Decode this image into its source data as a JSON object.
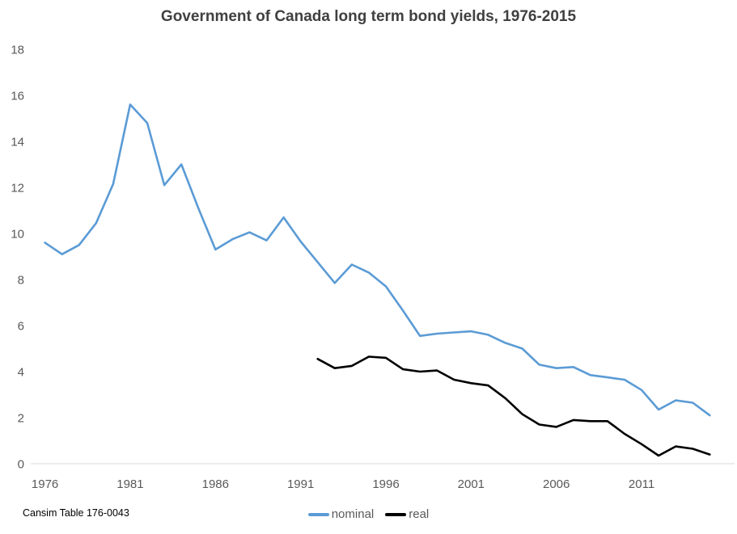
{
  "chart_data": {
    "type": "line",
    "title": "Government of Canada long term bond yields, 1976-2015",
    "x": [
      1976,
      1977,
      1978,
      1979,
      1980,
      1981,
      1982,
      1983,
      1984,
      1985,
      1986,
      1987,
      1988,
      1989,
      1990,
      1991,
      1992,
      1993,
      1994,
      1995,
      1996,
      1997,
      1998,
      1999,
      2000,
      2001,
      2002,
      2003,
      2004,
      2005,
      2006,
      2007,
      2008,
      2009,
      2010,
      2011,
      2012,
      2013,
      2014,
      2015
    ],
    "series": [
      {
        "name": "nominal",
        "color": "#5B9BD5",
        "values": [
          9.6,
          9.1,
          9.5,
          10.45,
          12.15,
          15.6,
          14.8,
          12.1,
          13.0,
          11.1,
          9.3,
          9.75,
          10.05,
          9.7,
          10.7,
          9.65,
          8.75,
          7.85,
          8.65,
          8.3,
          7.7,
          6.65,
          5.55,
          5.65,
          5.7,
          5.75,
          5.6,
          5.25,
          5.0,
          4.3,
          4.15,
          4.2,
          3.85,
          3.75,
          3.65,
          3.2,
          2.35,
          2.75,
          2.65,
          2.1
        ]
      },
      {
        "name": "real",
        "color": "#000000",
        "values": [
          null,
          null,
          null,
          null,
          null,
          null,
          null,
          null,
          null,
          null,
          null,
          null,
          null,
          null,
          null,
          null,
          4.55,
          4.15,
          4.25,
          4.65,
          4.6,
          4.1,
          4.0,
          4.05,
          3.65,
          3.5,
          3.4,
          2.85,
          2.15,
          1.7,
          1.6,
          1.9,
          1.85,
          1.85,
          1.3,
          0.85,
          0.35,
          0.75,
          0.65,
          0.4
        ]
      }
    ],
    "x_axis": {
      "tick_years": [
        1976,
        1981,
        1986,
        1991,
        1996,
        2001,
        2006,
        2011
      ],
      "tick_labels": [
        "1976",
        "1981",
        "1986",
        "1991",
        "1996",
        "2001",
        "2006",
        "2011"
      ]
    },
    "y_axis": {
      "min": 0,
      "max": 18,
      "step": 2,
      "tick_labels": [
        "0",
        "2",
        "4",
        "6",
        "8",
        "10",
        "12",
        "14",
        "16",
        "18"
      ]
    },
    "legend": {
      "position": "bottom",
      "entries": [
        "nominal",
        "real"
      ]
    },
    "grid": "off",
    "ylim": [
      0,
      18
    ]
  },
  "source_note": "Cansim Table 176-0043",
  "colors": {
    "nominal": "#5B9BD5",
    "real": "#000000",
    "axis_line": "#D9D9D9",
    "axis_text": "#595959",
    "title_text": "#404040",
    "background": "#FFFFFF"
  }
}
